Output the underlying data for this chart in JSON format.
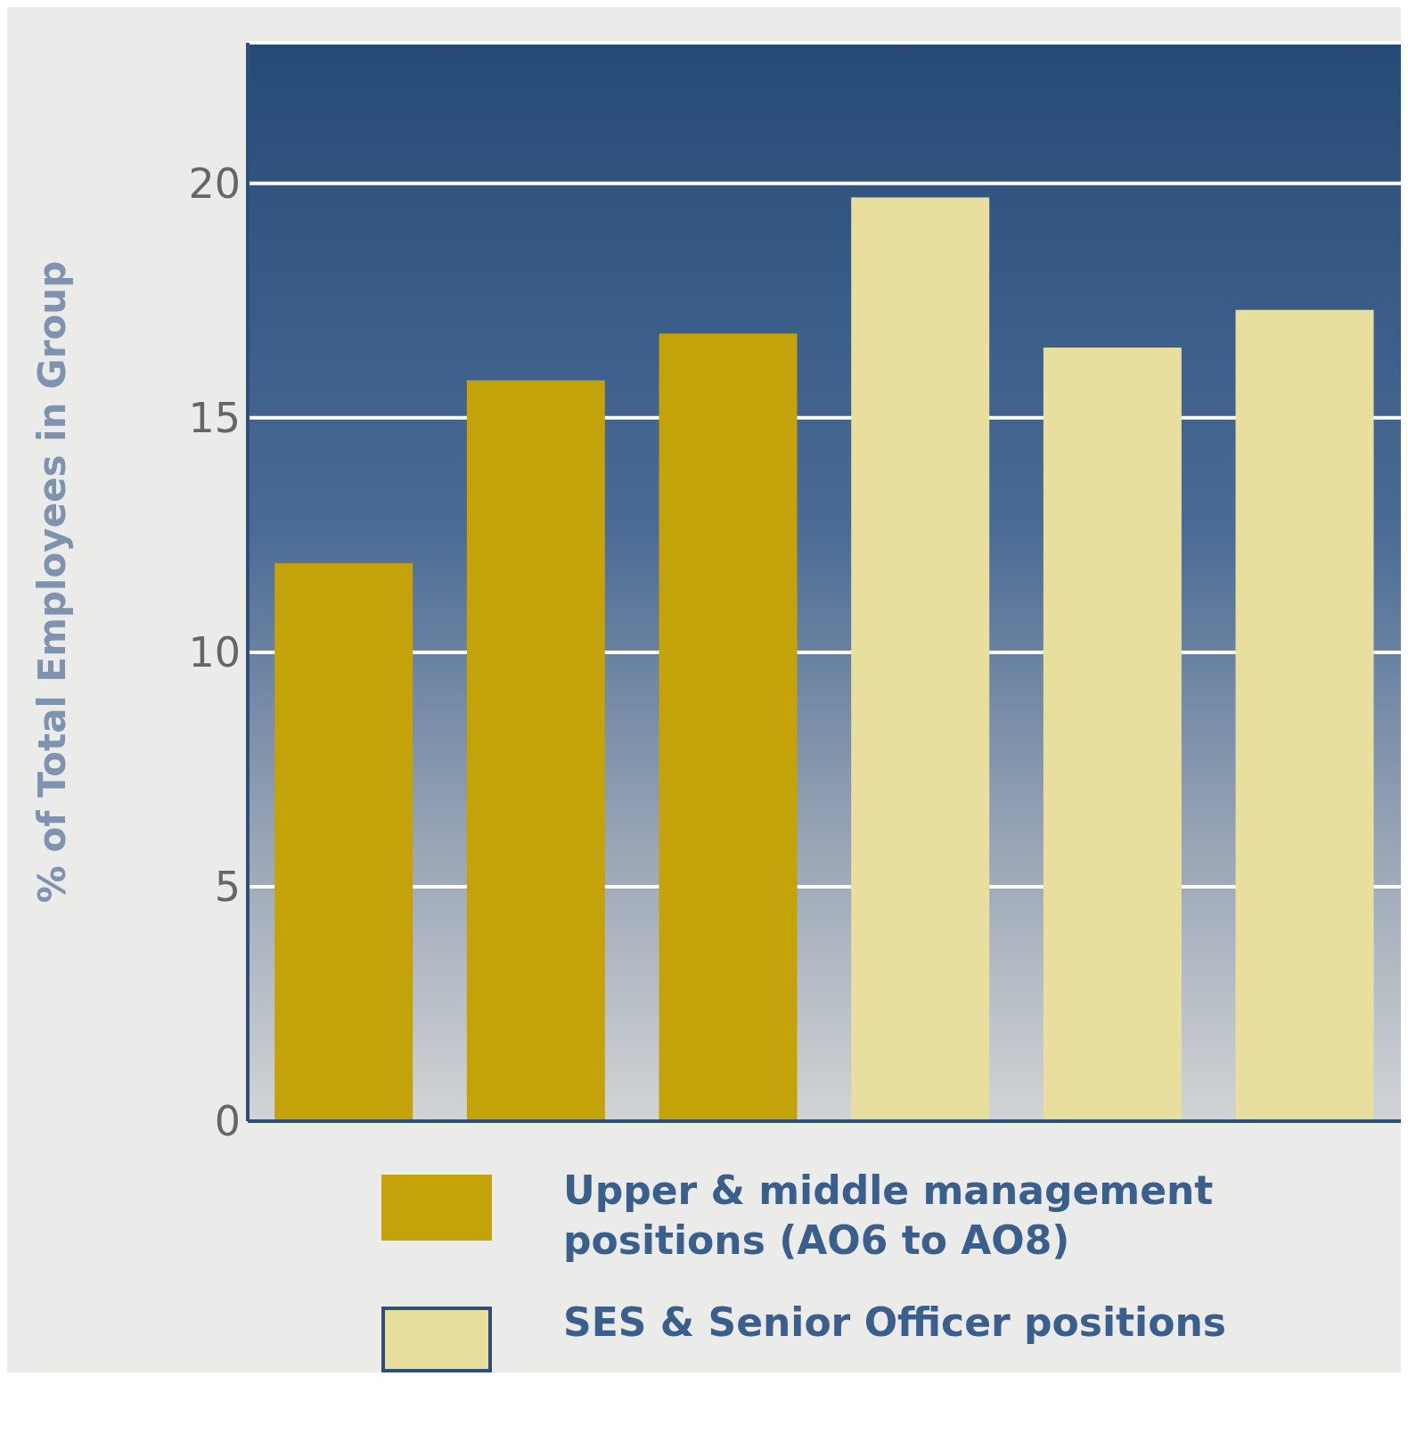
{
  "chart_data": {
    "type": "bar",
    "ylabel": "% of Total Employees in Group",
    "categories": [
      null,
      null,
      null,
      null,
      null,
      null
    ],
    "series": [
      {
        "name": "Upper & middle management positions (AO6 to AO8)",
        "color": "#c4a20a",
        "values": [
          11.9,
          15.8,
          16.8,
          null,
          null,
          null
        ]
      },
      {
        "name": "SES & Senior Officer positions",
        "color": "#e8df9e",
        "values": [
          null,
          null,
          null,
          19.7,
          16.5,
          17.3
        ]
      }
    ],
    "stacked": true,
    "ylim": [
      0,
      23
    ],
    "yticks": [
      0,
      5,
      10,
      15,
      20
    ],
    "grid": "y",
    "legend": "bottom"
  }
}
